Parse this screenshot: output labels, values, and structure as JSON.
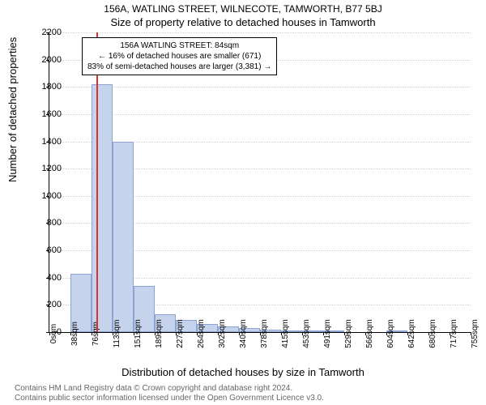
{
  "header": {
    "title1": "156A, WATLING STREET, WILNECOTE, TAMWORTH, B77 5BJ",
    "title2": "Size of property relative to detached houses in Tamworth"
  },
  "chart": {
    "type": "histogram",
    "ylabel": "Number of detached properties",
    "xlabel": "Distribution of detached houses by size in Tamworth",
    "ylim": [
      0,
      2200
    ],
    "ytick_step": 200,
    "yticks": [
      0,
      200,
      400,
      600,
      800,
      1000,
      1200,
      1400,
      1600,
      1800,
      2000,
      2200
    ],
    "xticks": [
      "0sqm",
      "38sqm",
      "76sqm",
      "113sqm",
      "151sqm",
      "189sqm",
      "227sqm",
      "264sqm",
      "302sqm",
      "340sqm",
      "378sqm",
      "415sqm",
      "453sqm",
      "491sqm",
      "529sqm",
      "566sqm",
      "604sqm",
      "642sqm",
      "680sqm",
      "717sqm",
      "755sqm"
    ],
    "values": [
      0,
      430,
      1820,
      1400,
      340,
      130,
      90,
      60,
      40,
      30,
      20,
      10,
      5,
      5,
      0,
      0,
      5,
      0,
      0,
      0
    ],
    "bar_color": "#c5d4ec",
    "bar_border_color": "#8aa3d0",
    "background_color": "#ffffff",
    "grid_color": "#cfcfcf",
    "marker": {
      "value_sqm": 84,
      "color": "#d93030"
    },
    "annotation": {
      "line1": "156A WATLING STREET: 84sqm",
      "line2": "← 16% of detached houses are smaller (671)",
      "line3": "83% of semi-detached houses are larger (3,381) →"
    }
  },
  "attribution": {
    "line1": "Contains HM Land Registry data © Crown copyright and database right 2024.",
    "line2": "Contains public sector information licensed under the Open Government Licence v3.0."
  }
}
